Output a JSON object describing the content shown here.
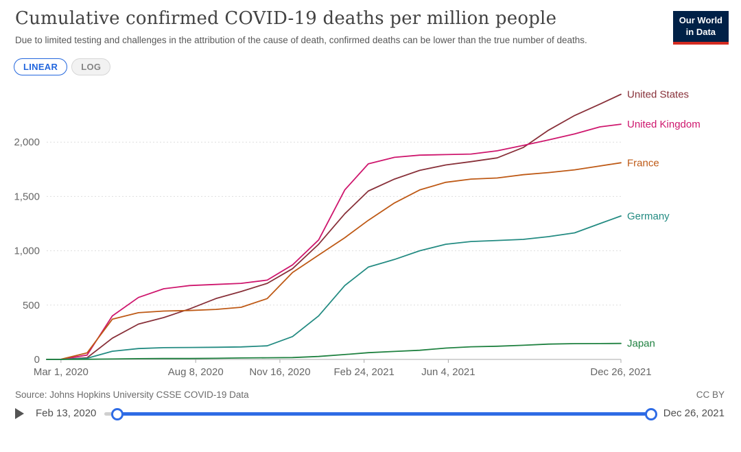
{
  "header": {
    "title": "Cumulative confirmed COVID-19 deaths per million people",
    "subtitle": "Due to limited testing and challenges in the attribution of the cause of death, confirmed deaths can be lower than the true number of deaths.",
    "logo": {
      "line1": "Our World",
      "line2": "in Data"
    }
  },
  "controls": {
    "linear_label": "LINEAR",
    "log_label": "LOG",
    "selected": "LINEAR"
  },
  "chart_data": {
    "type": "line",
    "title": "Cumulative confirmed COVID-19 deaths per million people",
    "xlabel": "",
    "ylabel": "",
    "ylim": [
      0,
      2500
    ],
    "grid": "horizontal-dashed",
    "legend_position": "right-of-line-ends",
    "x_range": [
      "2020-02-13",
      "2021-12-26"
    ],
    "x": [
      "2020-02-13",
      "2020-03-01",
      "2020-04-01",
      "2020-05-01",
      "2020-06-01",
      "2020-07-01",
      "2020-08-01",
      "2020-09-01",
      "2020-10-01",
      "2020-11-01",
      "2020-12-01",
      "2021-01-01",
      "2021-02-01",
      "2021-03-01",
      "2021-04-01",
      "2021-05-01",
      "2021-06-01",
      "2021-07-01",
      "2021-08-01",
      "2021-09-01",
      "2021-10-01",
      "2021-11-01",
      "2021-12-01",
      "2021-12-26"
    ],
    "x_ticks": [
      {
        "date": "2020-03-01",
        "label": "Mar 1, 2020"
      },
      {
        "date": "2020-08-08",
        "label": "Aug 8, 2020"
      },
      {
        "date": "2020-11-16",
        "label": "Nov 16, 2020"
      },
      {
        "date": "2021-02-24",
        "label": "Feb 24, 2021"
      },
      {
        "date": "2021-06-04",
        "label": "Jun 4, 2021"
      },
      {
        "date": "2021-12-26",
        "label": "Dec 26, 2021"
      }
    ],
    "y_ticks": [
      {
        "value": 0,
        "label": "0"
      },
      {
        "value": 500,
        "label": "500"
      },
      {
        "value": 1000,
        "label": "1,000"
      },
      {
        "value": 1500,
        "label": "1,500"
      },
      {
        "value": 2000,
        "label": "2,000"
      }
    ],
    "series": [
      {
        "name": "United States",
        "color": "#883039",
        "values": [
          0,
          0,
          15,
          195,
          325,
          385,
          465,
          560,
          625,
          700,
          835,
          1060,
          1340,
          1550,
          1660,
          1740,
          1790,
          1820,
          1855,
          1950,
          2110,
          2245,
          2350,
          2440
        ]
      },
      {
        "name": "United Kingdom",
        "color": "#CE166D",
        "values": [
          0,
          0,
          40,
          400,
          570,
          650,
          680,
          690,
          700,
          730,
          870,
          1100,
          1560,
          1800,
          1860,
          1880,
          1885,
          1890,
          1920,
          1970,
          2020,
          2075,
          2140,
          2165
        ]
      },
      {
        "name": "France",
        "color": "#BE5915",
        "values": [
          0,
          1,
          60,
          370,
          430,
          445,
          450,
          460,
          480,
          560,
          800,
          960,
          1120,
          1280,
          1440,
          1560,
          1630,
          1660,
          1670,
          1700,
          1720,
          1745,
          1780,
          1810
        ]
      },
      {
        "name": "Germany",
        "color": "#238B82",
        "values": [
          0,
          0,
          10,
          75,
          100,
          108,
          110,
          112,
          115,
          125,
          210,
          400,
          680,
          850,
          920,
          1000,
          1060,
          1085,
          1095,
          1105,
          1130,
          1165,
          1250,
          1320
        ]
      },
      {
        "name": "Japan",
        "color": "#1F8140",
        "values": [
          0,
          0,
          1,
          4,
          7,
          8,
          8,
          10,
          13,
          15,
          17,
          27,
          45,
          62,
          73,
          84,
          104,
          116,
          121,
          130,
          141,
          145,
          146,
          147
        ]
      }
    ]
  },
  "footer": {
    "source": "Source: Johns Hopkins University CSSE COVID-19 Data",
    "license": "CC BY"
  },
  "timeline": {
    "start_label": "Feb 13, 2020",
    "end_label": "Dec 26, 2021"
  },
  "colors": {
    "accent_blue": "#2e6be5",
    "logo_navy": "#002147",
    "logo_red": "#d42b21",
    "axis_text": "#666666",
    "gridline": "#dddddd"
  }
}
